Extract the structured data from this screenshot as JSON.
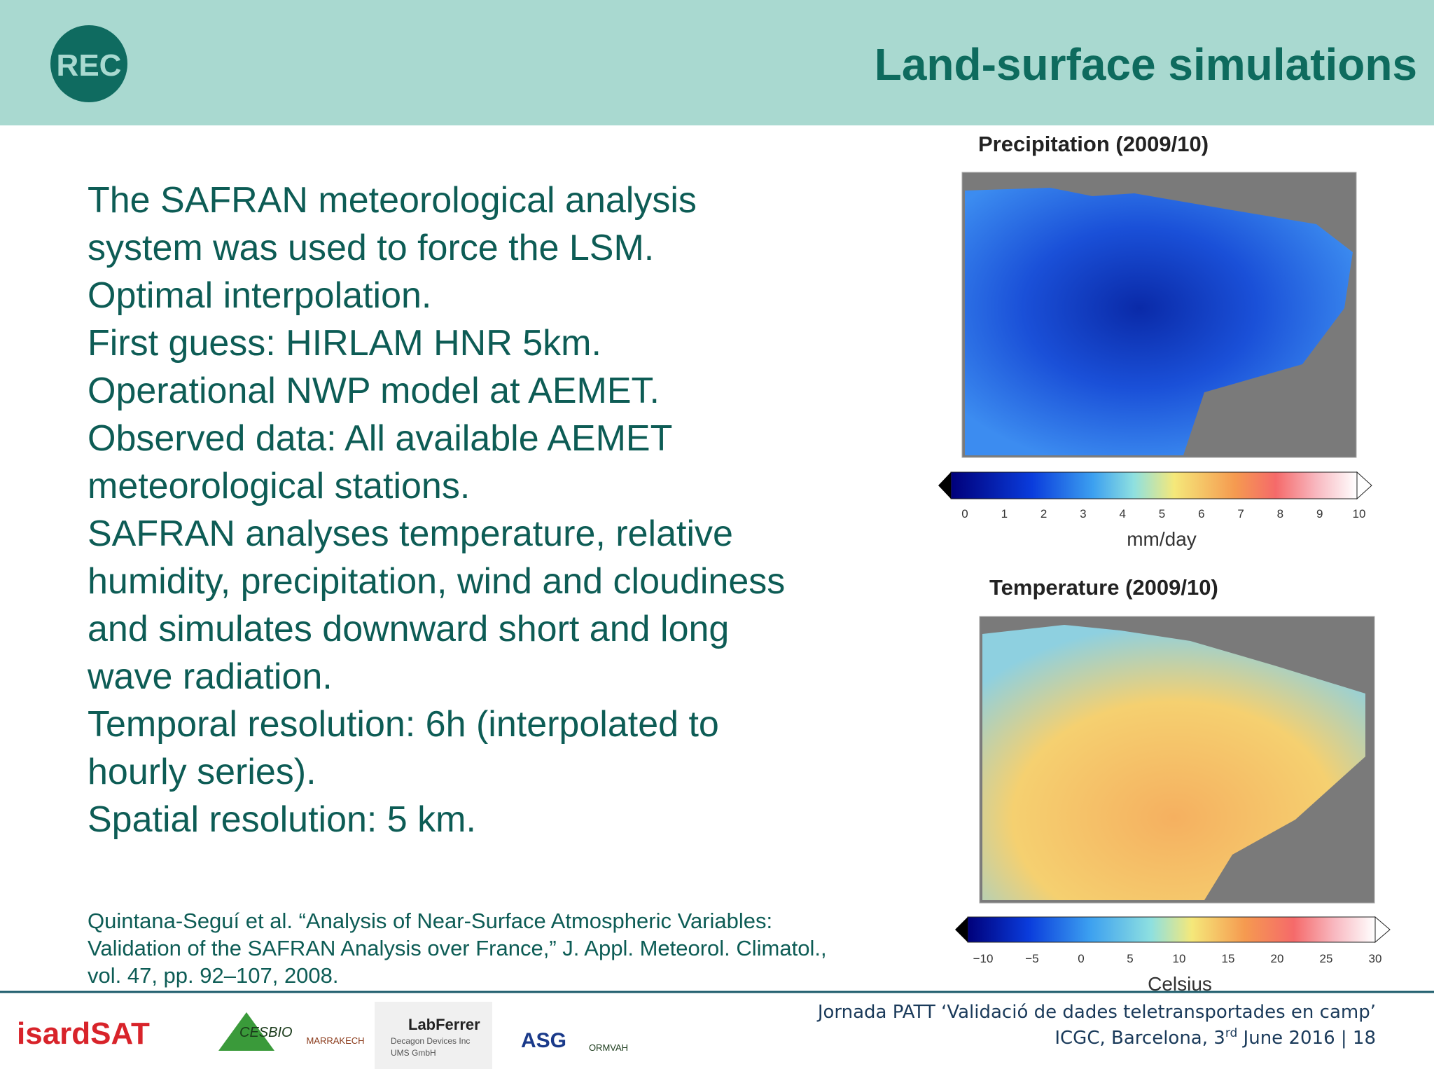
{
  "header": {
    "title": "Land-surface simulations",
    "logo": "REC"
  },
  "body": {
    "lines": [
      "The SAFRAN meteorological analysis",
      "system was used to force the LSM.",
      "Optimal interpolation.",
      "First guess: HIRLAM HNR 5km.",
      "Operational NWP model at AEMET.",
      "Observed data: All available AEMET",
      "meteorological stations.",
      "SAFRAN analyses temperature, relative",
      "humidity, precipitation, wind and cloudiness",
      "and simulates downward short and long",
      "wave radiation.",
      "Temporal resolution: 6h (interpolated to",
      "hourly series).",
      "Spatial resolution: 5 km."
    ],
    "reference": [
      "Quintana-Seguí et al.  “Analysis of Near-Surface Atmospheric Variables:",
      "Validation of the SAFRAN Analysis over France,” J. Appl. Meteorol. Climatol.,",
      "vol. 47, pp. 92–107, 2008."
    ]
  },
  "maps": [
    {
      "title": "Precipitation (2009/10)",
      "unit": "mm/day",
      "ticks": [
        "0",
        "1",
        "2",
        "3",
        "4",
        "5",
        "6",
        "7",
        "8",
        "9",
        "10"
      ]
    },
    {
      "title": "Temperature (2009/10)",
      "unit": "Celsius",
      "ticks": [
        "−10",
        "−5",
        "0",
        "5",
        "10",
        "15",
        "20",
        "25",
        "30"
      ]
    }
  ],
  "footer": {
    "line1": "Jornada PATT ‘Validació de dades teletransportades en camp’",
    "line2_a": "ICGC, Barcelona, 3",
    "line2_sup": "rd",
    "line2_b": " June 2016 | 18",
    "logos": [
      "isardSAT",
      "CESBIO",
      "MARRAKECH",
      "LabFerrer",
      "Decagon Devices Inc",
      "UMS GmbH",
      "ASG",
      "ORMVAH"
    ]
  }
}
